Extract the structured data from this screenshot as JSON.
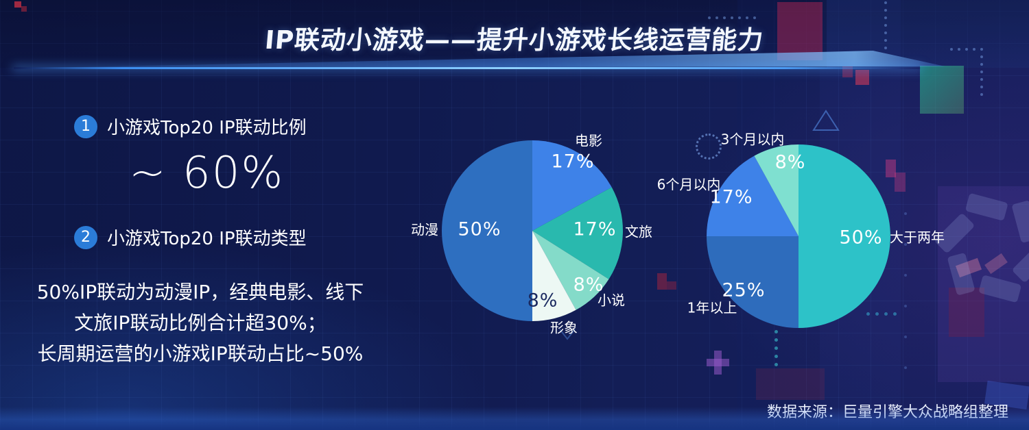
{
  "slide": {
    "title": "IP联动小游戏——提升小游戏长线运营能力",
    "source": "数据来源：巨量引擎大众战略组整理"
  },
  "points": [
    {
      "num": "1",
      "label": "小游戏Top20 IP联动比例"
    },
    {
      "num": "2",
      "label": "小游戏Top20 IP联动类型"
    }
  ],
  "highlight_value": "~ 60%",
  "summary_lines": [
    "50%IP联动为动漫IP，经典电影、线下",
    "文旅IP联动比例合计超30%；",
    "长周期运营的小游戏IP联动占比~50%"
  ],
  "chart_data": [
    {
      "type": "pie",
      "title": "小游戏Top20 IP联动类型",
      "unit": "%",
      "direction": "clockwise",
      "start_angle_deg": 0,
      "slices": [
        {
          "label": "电影",
          "value": 17,
          "color": "#3e82e8"
        },
        {
          "label": "文旅",
          "value": 17,
          "color": "#29b9ae"
        },
        {
          "label": "小说",
          "value": 8,
          "color": "#84dbc9"
        },
        {
          "label": "形象",
          "value": 8,
          "color": "#edf8f4"
        },
        {
          "label": "动漫",
          "value": 50,
          "color": "#2e6fc0"
        }
      ]
    },
    {
      "type": "pie",
      "title": "",
      "unit": "%",
      "direction": "clockwise",
      "start_angle_deg": 0,
      "slices": [
        {
          "label": "大于两年",
          "value": 50,
          "color": "#2dc2c8"
        },
        {
          "label": "1年以上",
          "value": 25,
          "color": "#2e6cbc"
        },
        {
          "label": "6个月以内",
          "value": 17,
          "color": "#3e82e8"
        },
        {
          "label": "3个月以内",
          "value": 8,
          "color": "#7fe0d0"
        }
      ]
    }
  ],
  "colors": {
    "background": "#101a4e",
    "accent_blue": "#2b7cd8",
    "divider_glow": "#8fd0ff",
    "text": "#ffffff",
    "dark_value_label": "#1b2a60"
  }
}
